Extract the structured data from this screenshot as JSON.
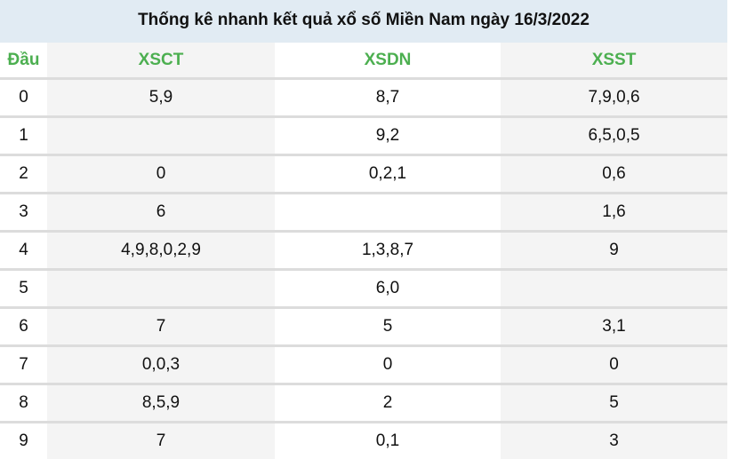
{
  "title": "Thống kê nhanh kết quả xổ số Miền Nam ngày 16/3/2022",
  "columns": [
    "Đầu",
    "XSCT",
    "XSDN",
    "XSST"
  ],
  "header_color": "#4caf50",
  "rows": [
    [
      "0",
      "5,9",
      "8,7",
      "7,9,0,6"
    ],
    [
      "1",
      "",
      "9,2",
      "6,5,0,5"
    ],
    [
      "2",
      "0",
      "0,2,1",
      "0,6"
    ],
    [
      "3",
      "6",
      "",
      "1,6"
    ],
    [
      "4",
      "4,9,8,0,2,9",
      "1,3,8,7",
      "9"
    ],
    [
      "5",
      "",
      "6,0",
      ""
    ],
    [
      "6",
      "7",
      "5",
      "3,1"
    ],
    [
      "7",
      "0,0,3",
      "0",
      "0"
    ],
    [
      "8",
      "8,5,9",
      "2",
      "5"
    ],
    [
      "9",
      "7",
      "0,1",
      "3"
    ]
  ]
}
